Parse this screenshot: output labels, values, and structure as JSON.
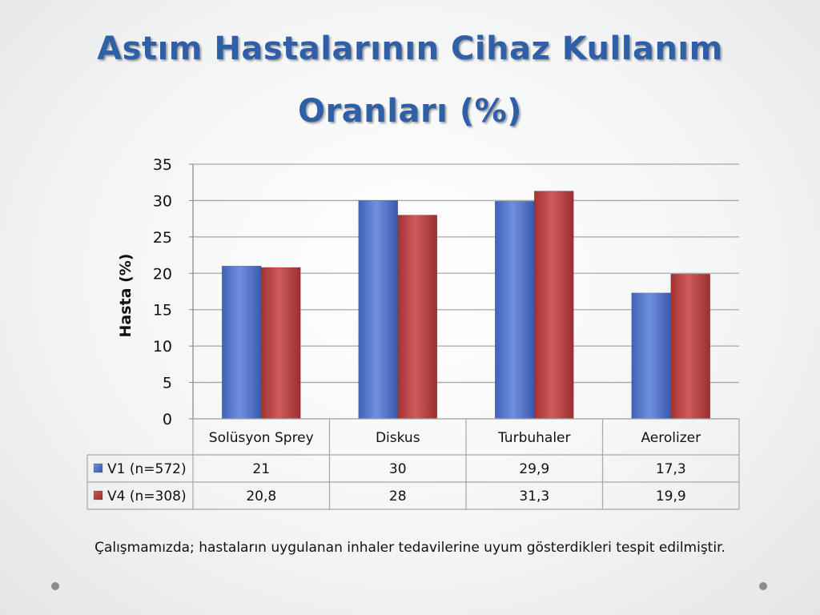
{
  "slide": {
    "title_line1": "Astım Hastalarının Cihaz Kullanım",
    "title_line2": "Oranları (%)",
    "caption": "Çalışmamızda; hastaların uygulanan inhaler tedavilerine uyum gösterdikleri tespit edilmiştir."
  },
  "chart_data": {
    "type": "bar",
    "categories": [
      "Solüsyon Sprey",
      "Diskus",
      "Turbuhaler",
      "Aerolizer"
    ],
    "series": [
      {
        "name": "V1 (n=572)",
        "values": [
          21,
          30,
          29.9,
          17.3
        ],
        "labels": [
          "21",
          "30",
          "29,9",
          "17,3"
        ],
        "color": "#4a6fc7"
      },
      {
        "name": "V4 (n=308)",
        "values": [
          20.8,
          28,
          31.3,
          19.9
        ],
        "labels": [
          "20,8",
          "28",
          "31,3",
          "19,9"
        ],
        "color": "#b23b3b"
      }
    ],
    "ylabel": "Hasta (%)",
    "ylim": [
      0,
      35
    ],
    "yticks": [
      0,
      5,
      10,
      15,
      20,
      25,
      30,
      35
    ],
    "grid": true,
    "legend": "data-table"
  }
}
